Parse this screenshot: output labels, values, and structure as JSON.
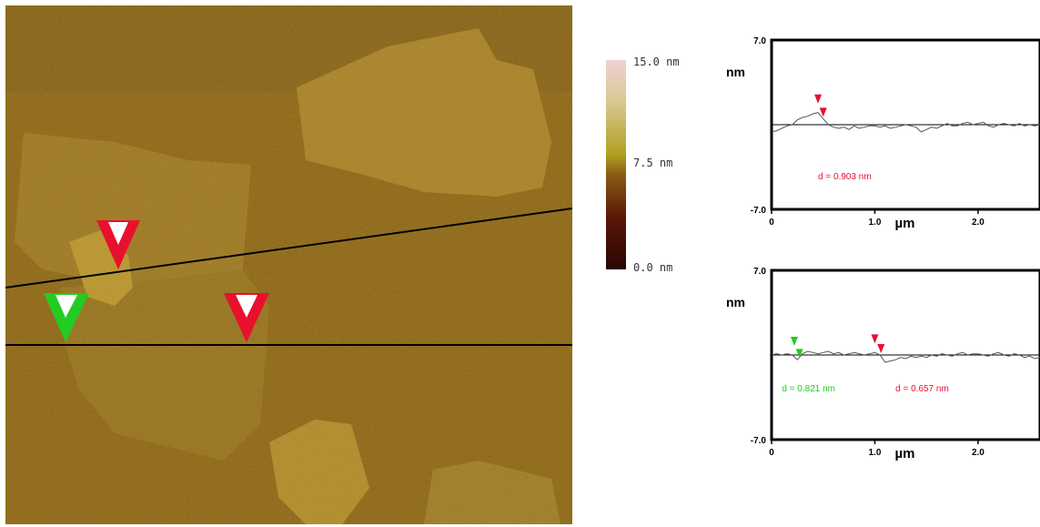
{
  "colors": {
    "bg": "#8c6418",
    "marker_red": "#e8112d",
    "marker_green": "#22cc22",
    "profile_line": "#555555"
  },
  "colorbar": {
    "top_label": "15.0 nm",
    "mid_label": "7.5 nm",
    "bottom_label": "0.0 nm"
  },
  "chart_data": [
    {
      "type": "line",
      "ylabel": "nm",
      "xlabel": "µm",
      "ylim": [
        -7.0,
        7.0
      ],
      "xlim": [
        0,
        2.6
      ],
      "yticks": [
        "7.0",
        "-7.0"
      ],
      "xticks": [
        {
          "v": 0,
          "label": "0"
        },
        {
          "v": 1.0,
          "label": "1.0"
        },
        {
          "v": 2.0,
          "label": "2.0"
        }
      ],
      "x": [
        0.0,
        0.05,
        0.1,
        0.15,
        0.2,
        0.25,
        0.3,
        0.35,
        0.4,
        0.45,
        0.5,
        0.55,
        0.6,
        0.65,
        0.7,
        0.75,
        0.8,
        0.85,
        0.9,
        0.95,
        1.0,
        1.05,
        1.1,
        1.15,
        1.2,
        1.25,
        1.3,
        1.35,
        1.4,
        1.45,
        1.5,
        1.55,
        1.6,
        1.65,
        1.7,
        1.75,
        1.8,
        1.85,
        1.9,
        1.95,
        2.0,
        2.05,
        2.1,
        2.15,
        2.2,
        2.25,
        2.3,
        2.35,
        2.4,
        2.45,
        2.5,
        2.55,
        2.6
      ],
      "y": [
        -0.6,
        -0.5,
        -0.3,
        -0.1,
        0.0,
        0.4,
        0.6,
        0.7,
        0.9,
        1.0,
        0.5,
        0.0,
        -0.2,
        -0.3,
        -0.2,
        -0.4,
        -0.1,
        -0.3,
        -0.2,
        -0.1,
        -0.1,
        -0.2,
        -0.1,
        -0.3,
        -0.2,
        -0.1,
        0.0,
        -0.1,
        -0.2,
        -0.6,
        -0.4,
        -0.2,
        -0.3,
        -0.1,
        0.1,
        -0.1,
        -0.1,
        0.1,
        0.2,
        0.0,
        0.1,
        0.2,
        -0.1,
        -0.2,
        0.0,
        0.1,
        0.0,
        -0.1,
        0.1,
        -0.1,
        0.0,
        -0.1,
        0.0
      ],
      "markers": [
        {
          "x": 0.45,
          "color": "red"
        },
        {
          "x": 0.5,
          "color": "red"
        }
      ],
      "annotations": [
        {
          "text": "d = 0.903 nm",
          "color": "red"
        }
      ]
    },
    {
      "type": "line",
      "ylabel": "nm",
      "xlabel": "µm",
      "ylim": [
        -7.0,
        7.0
      ],
      "xlim": [
        0,
        2.6
      ],
      "yticks": [
        "7.0",
        "-7.0"
      ],
      "xticks": [
        {
          "v": 0,
          "label": "0"
        },
        {
          "v": 1.0,
          "label": "1.0"
        },
        {
          "v": 2.0,
          "label": "2.0"
        }
      ],
      "x": [
        0.0,
        0.05,
        0.1,
        0.15,
        0.2,
        0.25,
        0.3,
        0.35,
        0.4,
        0.45,
        0.5,
        0.55,
        0.6,
        0.65,
        0.7,
        0.75,
        0.8,
        0.85,
        0.9,
        0.95,
        1.0,
        1.05,
        1.1,
        1.15,
        1.2,
        1.25,
        1.3,
        1.35,
        1.4,
        1.45,
        1.5,
        1.55,
        1.6,
        1.65,
        1.7,
        1.75,
        1.8,
        1.85,
        1.9,
        1.95,
        2.0,
        2.05,
        2.1,
        2.15,
        2.2,
        2.25,
        2.3,
        2.35,
        2.4,
        2.45,
        2.5,
        2.55,
        2.6
      ],
      "y": [
        0.0,
        0.1,
        0.0,
        0.1,
        0.0,
        -0.4,
        0.1,
        0.3,
        0.2,
        0.1,
        0.2,
        0.3,
        0.1,
        0.2,
        0.0,
        0.1,
        0.2,
        0.1,
        0.0,
        0.1,
        0.2,
        0.0,
        -0.6,
        -0.5,
        -0.4,
        -0.2,
        -0.3,
        -0.1,
        -0.2,
        -0.1,
        -0.2,
        0.0,
        -0.1,
        0.1,
        0.0,
        -0.1,
        0.1,
        0.2,
        0.0,
        0.1,
        0.1,
        0.0,
        -0.1,
        0.1,
        0.2,
        0.0,
        -0.1,
        0.1,
        0.0,
        -0.2,
        -0.1,
        -0.3,
        -0.2
      ],
      "markers": [
        {
          "x": 0.22,
          "color": "green"
        },
        {
          "x": 0.27,
          "color": "green"
        },
        {
          "x": 1.0,
          "color": "red"
        },
        {
          "x": 1.06,
          "color": "red"
        }
      ],
      "annotations": [
        {
          "text": "d = 0.821 nm",
          "color": "green"
        },
        {
          "text": "d = 0.657 nm",
          "color": "red"
        }
      ]
    }
  ]
}
